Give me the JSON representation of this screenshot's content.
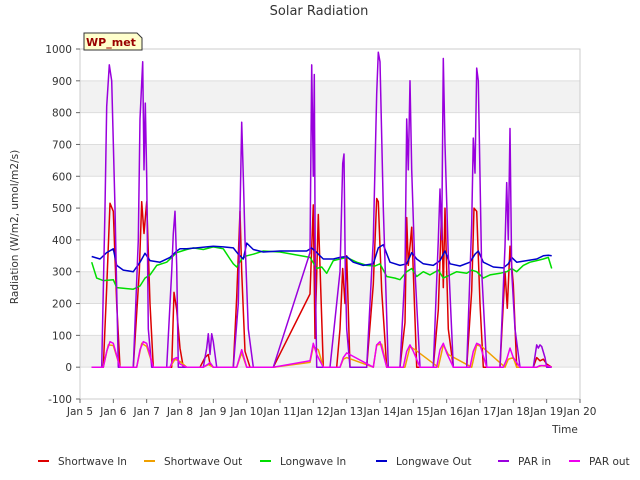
{
  "chart_data": {
    "type": "line",
    "title": "Solar Radiation",
    "xlabel": "Time",
    "ylabel": "Radiation (W/m2, umol/m2/s)",
    "ylim": [
      -100,
      1000
    ],
    "xlim": [
      5,
      20
    ],
    "y_ticks": [
      -100,
      0,
      100,
      200,
      300,
      400,
      500,
      600,
      700,
      800,
      900,
      1000
    ],
    "y_tick_labels": [
      "-100",
      "0",
      "100",
      "200",
      "300",
      "400",
      "500",
      "600",
      "700",
      "800",
      "900",
      "1000"
    ],
    "x_ticks": [
      5,
      6,
      7,
      8,
      9,
      10,
      11,
      12,
      13,
      14,
      15,
      16,
      17,
      18,
      19,
      20
    ],
    "x_tick_labels": [
      "Jan 5",
      "Jan 6",
      "Jan 7",
      "Jan 8",
      "Jan 9",
      "Jan 10",
      "Jan 11",
      "Jan 12",
      "Jan 13",
      "Jan 14",
      "Jan 15",
      "Jan 16",
      "Jan 17",
      "Jan 18",
      "Jan 19",
      "Jan 20"
    ],
    "station_label": "WP_met",
    "series": [
      {
        "name": "Shortwave In",
        "color": "#dd0000",
        "x": [
          5.35,
          5.7,
          5.8,
          5.9,
          6.0,
          6.1,
          6.2,
          6.6,
          6.78,
          6.85,
          6.92,
          7.0,
          7.1,
          7.2,
          7.5,
          7.75,
          7.82,
          7.9,
          8.0,
          8.1,
          8.6,
          8.75,
          8.85,
          8.9,
          9.0,
          9.6,
          9.7,
          9.8,
          9.85,
          9.95,
          10.1,
          10.8,
          11.9,
          12.0,
          12.05,
          12.15,
          12.3,
          12.7,
          12.8,
          12.88,
          12.95,
          13.0,
          13.1,
          13.6,
          13.8,
          13.9,
          13.95,
          14.05,
          14.2,
          14.6,
          14.75,
          14.8,
          14.85,
          14.95,
          15.1,
          15.6,
          15.75,
          15.85,
          15.9,
          15.95,
          16.05,
          16.2,
          16.6,
          16.75,
          16.82,
          16.9,
          17.0,
          17.1,
          17.3,
          17.6,
          17.75,
          17.82,
          17.9,
          18.0,
          18.1,
          18.3,
          18.6,
          18.7,
          18.8,
          18.9,
          19.0,
          19.15
        ],
        "y": [
          0,
          0,
          250,
          515,
          490,
          200,
          0,
          0,
          300,
          520,
          420,
          520,
          200,
          0,
          0,
          0,
          235,
          180,
          60,
          0,
          0,
          30,
          40,
          10,
          0,
          0,
          220,
          490,
          300,
          50,
          0,
          0,
          230,
          510,
          90,
          480,
          0,
          0,
          120,
          310,
          200,
          350,
          0,
          0,
          260,
          530,
          520,
          240,
          0,
          0,
          140,
          470,
          320,
          440,
          0,
          0,
          180,
          500,
          250,
          500,
          120,
          0,
          0,
          240,
          500,
          490,
          200,
          0,
          0,
          0,
          300,
          185,
          380,
          260,
          0,
          0,
          0,
          30,
          20,
          25,
          10,
          0
        ]
      },
      {
        "name": "Shortwave Out",
        "color": "#f0a000",
        "x": [
          5.35,
          5.7,
          5.85,
          6.0,
          6.2,
          6.7,
          6.85,
          7.0,
          7.2,
          7.7,
          7.85,
          8.0,
          8.2,
          8.7,
          8.85,
          9.0,
          9.7,
          9.85,
          10.0,
          10.8,
          11.9,
          12.0,
          12.15,
          12.3,
          12.8,
          12.9,
          13.0,
          13.8,
          13.9,
          14.05,
          14.2,
          14.75,
          14.9,
          15.05,
          15.75,
          15.9,
          16.05,
          16.75,
          16.9,
          17.05,
          17.75,
          17.85,
          18.0,
          18.1,
          18.7,
          18.85,
          19.0,
          19.15
        ],
        "y": [
          0,
          0,
          70,
          68,
          0,
          0,
          75,
          65,
          0,
          0,
          25,
          18,
          0,
          0,
          8,
          0,
          0,
          45,
          0,
          0,
          15,
          65,
          55,
          0,
          0,
          25,
          30,
          0,
          70,
          72,
          0,
          0,
          65,
          55,
          0,
          70,
          40,
          0,
          70,
          65,
          0,
          25,
          30,
          0,
          0,
          5,
          3,
          0
        ]
      },
      {
        "name": "Longwave In",
        "color": "#00dd00",
        "x": [
          5.35,
          5.5,
          5.7,
          6.0,
          6.1,
          6.3,
          6.6,
          6.8,
          6.95,
          7.1,
          7.3,
          7.6,
          7.9,
          8.2,
          8.4,
          8.7,
          9.0,
          9.3,
          9.5,
          9.6,
          9.7,
          9.85,
          10.0,
          10.2,
          10.5,
          11.0,
          11.9,
          12.1,
          12.25,
          12.4,
          12.6,
          12.8,
          13.0,
          13.3,
          13.6,
          13.85,
          14.0,
          14.2,
          14.45,
          14.6,
          14.8,
          14.95,
          15.1,
          15.3,
          15.5,
          15.75,
          15.9,
          16.1,
          16.3,
          16.6,
          16.75,
          16.9,
          17.1,
          17.3,
          17.6,
          17.8,
          17.95,
          18.1,
          18.3,
          18.5,
          18.7,
          18.9,
          19.05,
          19.15
        ],
        "y": [
          330,
          280,
          272,
          275,
          250,
          248,
          245,
          255,
          280,
          290,
          320,
          330,
          360,
          370,
          375,
          370,
          378,
          372,
          340,
          325,
          315,
          340,
          350,
          355,
          365,
          362,
          345,
          310,
          315,
          295,
          335,
          340,
          345,
          330,
          320,
          318,
          325,
          285,
          280,
          275,
          300,
          310,
          285,
          300,
          290,
          305,
          280,
          290,
          300,
          295,
          305,
          300,
          280,
          290,
          295,
          300,
          310,
          300,
          320,
          330,
          335,
          340,
          345,
          310
        ]
      },
      {
        "name": "Longwave Out",
        "color": "#0000cc",
        "x": [
          5.35,
          5.6,
          5.8,
          6.0,
          6.1,
          6.3,
          6.6,
          6.8,
          6.95,
          7.1,
          7.4,
          7.7,
          7.9,
          8.0,
          8.2,
          8.5,
          8.8,
          9.0,
          9.3,
          9.6,
          9.75,
          9.9,
          10.0,
          10.2,
          10.5,
          11.0,
          11.8,
          11.95,
          12.1,
          12.3,
          12.6,
          12.8,
          13.0,
          13.2,
          13.5,
          13.8,
          13.95,
          14.1,
          14.3,
          14.6,
          14.8,
          14.95,
          15.1,
          15.3,
          15.6,
          15.8,
          15.95,
          16.1,
          16.4,
          16.7,
          16.85,
          16.95,
          17.1,
          17.4,
          17.7,
          17.85,
          17.95,
          18.1,
          18.4,
          18.7,
          18.9,
          19.05,
          19.15
        ],
        "y": [
          348,
          340,
          360,
          372,
          320,
          305,
          300,
          330,
          358,
          335,
          330,
          345,
          365,
          372,
          372,
          375,
          378,
          380,
          378,
          375,
          355,
          340,
          390,
          370,
          362,
          365,
          365,
          375,
          360,
          340,
          340,
          345,
          348,
          330,
          320,
          325,
          375,
          385,
          330,
          320,
          325,
          360,
          340,
          325,
          320,
          335,
          365,
          325,
          318,
          330,
          355,
          365,
          330,
          315,
          312,
          325,
          345,
          330,
          335,
          340,
          350,
          352,
          350
        ]
      },
      {
        "name": "PAR in",
        "color": "#9900dd",
        "x": [
          5.35,
          5.65,
          5.75,
          5.8,
          5.88,
          5.95,
          6.05,
          6.15,
          6.3,
          6.6,
          6.75,
          6.8,
          6.88,
          6.92,
          6.96,
          7.0,
          7.05,
          7.15,
          7.3,
          7.6,
          7.75,
          7.8,
          7.85,
          7.9,
          7.95,
          8.05,
          8.3,
          8.7,
          8.8,
          8.85,
          8.9,
          8.95,
          9.0,
          9.1,
          9.6,
          9.75,
          9.85,
          9.9,
          9.95,
          10.05,
          10.2,
          10.8,
          11.9,
          11.95,
          12.0,
          12.03,
          12.06,
          12.1,
          12.2,
          12.5,
          12.8,
          12.88,
          12.92,
          12.96,
          13.0,
          13.1,
          13.6,
          13.8,
          13.9,
          13.95,
          14.0,
          14.1,
          14.25,
          14.6,
          14.75,
          14.8,
          14.85,
          14.9,
          14.95,
          15.05,
          15.2,
          15.6,
          15.75,
          15.8,
          15.85,
          15.9,
          15.95,
          16.05,
          16.2,
          16.6,
          16.75,
          16.8,
          16.85,
          16.9,
          16.95,
          17.05,
          17.2,
          17.6,
          17.75,
          17.8,
          17.85,
          17.9,
          17.95,
          18.05,
          18.2,
          18.6,
          18.7,
          18.75,
          18.8,
          18.85,
          18.95,
          19.0,
          19.15
        ],
        "y": [
          0,
          0,
          500,
          820,
          950,
          900,
          500,
          0,
          0,
          0,
          400,
          780,
          960,
          620,
          830,
          600,
          120,
          0,
          0,
          0,
          300,
          420,
          490,
          320,
          0,
          0,
          0,
          0,
          60,
          105,
          40,
          105,
          80,
          0,
          0,
          200,
          770,
          600,
          400,
          120,
          0,
          0,
          360,
          950,
          600,
          920,
          300,
          0,
          0,
          0,
          300,
          640,
          670,
          300,
          120,
          0,
          0,
          400,
          860,
          990,
          960,
          500,
          0,
          0,
          300,
          780,
          620,
          900,
          620,
          300,
          0,
          0,
          400,
          560,
          400,
          970,
          700,
          350,
          0,
          0,
          450,
          720,
          610,
          940,
          900,
          300,
          0,
          0,
          380,
          580,
          400,
          750,
          300,
          120,
          0,
          0,
          70,
          60,
          70,
          65,
          30,
          0,
          0
        ]
      },
      {
        "name": "PAR out",
        "color": "#ee00ee",
        "x": [
          5.35,
          5.7,
          5.8,
          5.9,
          6.0,
          6.2,
          6.7,
          6.8,
          6.9,
          7.0,
          7.2,
          7.7,
          7.8,
          7.9,
          8.0,
          8.2,
          8.7,
          8.85,
          8.9,
          9.0,
          9.7,
          9.85,
          10.0,
          10.8,
          11.9,
          12.0,
          12.1,
          12.3,
          12.8,
          12.9,
          13.0,
          13.8,
          13.9,
          14.0,
          14.2,
          14.7,
          14.8,
          14.9,
          15.0,
          15.2,
          15.7,
          15.8,
          15.9,
          16.0,
          16.2,
          16.7,
          16.8,
          16.9,
          17.0,
          17.2,
          17.7,
          17.8,
          17.9,
          18.0,
          18.2,
          18.7,
          18.8,
          18.9,
          19.0,
          19.15
        ],
        "y": [
          0,
          0,
          50,
          80,
          75,
          0,
          0,
          55,
          80,
          75,
          0,
          0,
          25,
          30,
          10,
          0,
          0,
          10,
          15,
          0,
          0,
          55,
          0,
          0,
          20,
          75,
          40,
          0,
          0,
          30,
          45,
          0,
          70,
          80,
          0,
          0,
          50,
          70,
          50,
          0,
          0,
          55,
          75,
          45,
          0,
          0,
          50,
          75,
          70,
          0,
          0,
          25,
          60,
          30,
          0,
          0,
          5,
          5,
          5,
          0
        ]
      }
    ]
  }
}
